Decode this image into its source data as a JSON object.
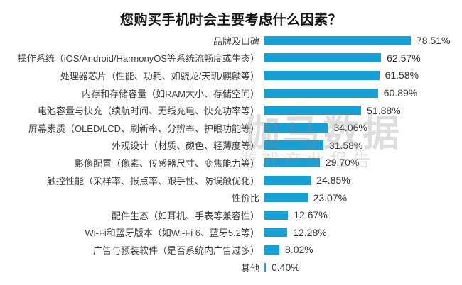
{
  "title": "您购买手机时会主要考虑什么因素？",
  "watermark": {
    "line1": "伽马数据",
    "line2": "游戏产业报告"
  },
  "colors": {
    "bar": "#189fd3",
    "title_text": "#141414",
    "category_text": "#3c3c3c",
    "value_text": "#333333",
    "background": "#ffffff",
    "watermark": "#8c8c8c"
  },
  "chart_data": {
    "type": "bar",
    "orientation": "horizontal",
    "title": "您购买手机时会主要考虑什么因素？",
    "xlabel": "",
    "ylabel": "",
    "xlim": [
      0,
      100
    ],
    "grid": false,
    "legend": null,
    "unit": "percent",
    "categories": [
      "品牌及口碑",
      "操作系统（iOS/Android/HarmonyOS等系统流畅度或生态）",
      "处理器芯片（性能、功耗、如骁龙/天玑/麒麟等）",
      "内存和存储容量（如RAM大小、存储空间）",
      "电池容量与快充（续航时间、无线充电、快充功率等）",
      "屏幕素质（OLED/LCD、刷新率、分辨率、护眼功能等）",
      "外观设计（材质、颜色、轻薄度等）",
      "影像配置（像素、传感器尺寸、变焦能力等）",
      "触控性能（采样率、报点率、跟手性、防误触优化）",
      "性价比",
      "配件生态（如耳机、手表等兼容性）",
      "Wi-Fi和蓝牙版本（如Wi-Fi 6、蓝牙5.2等）",
      "广告与预装软件（是否系统内广告过多）",
      "其他"
    ],
    "values": [
      78.51,
      62.57,
      61.58,
      60.89,
      51.88,
      34.06,
      31.58,
      29.7,
      24.85,
      23.07,
      12.67,
      12.28,
      8.02,
      0.4
    ],
    "value_labels": [
      "78.51%",
      "62.57%",
      "61.58%",
      "60.89%",
      "51.88%",
      "34.06%",
      "31.58%",
      "29.70%",
      "24.85%",
      "23.07%",
      "12.67%",
      "12.28%",
      "8.02%",
      "0.40%"
    ]
  }
}
